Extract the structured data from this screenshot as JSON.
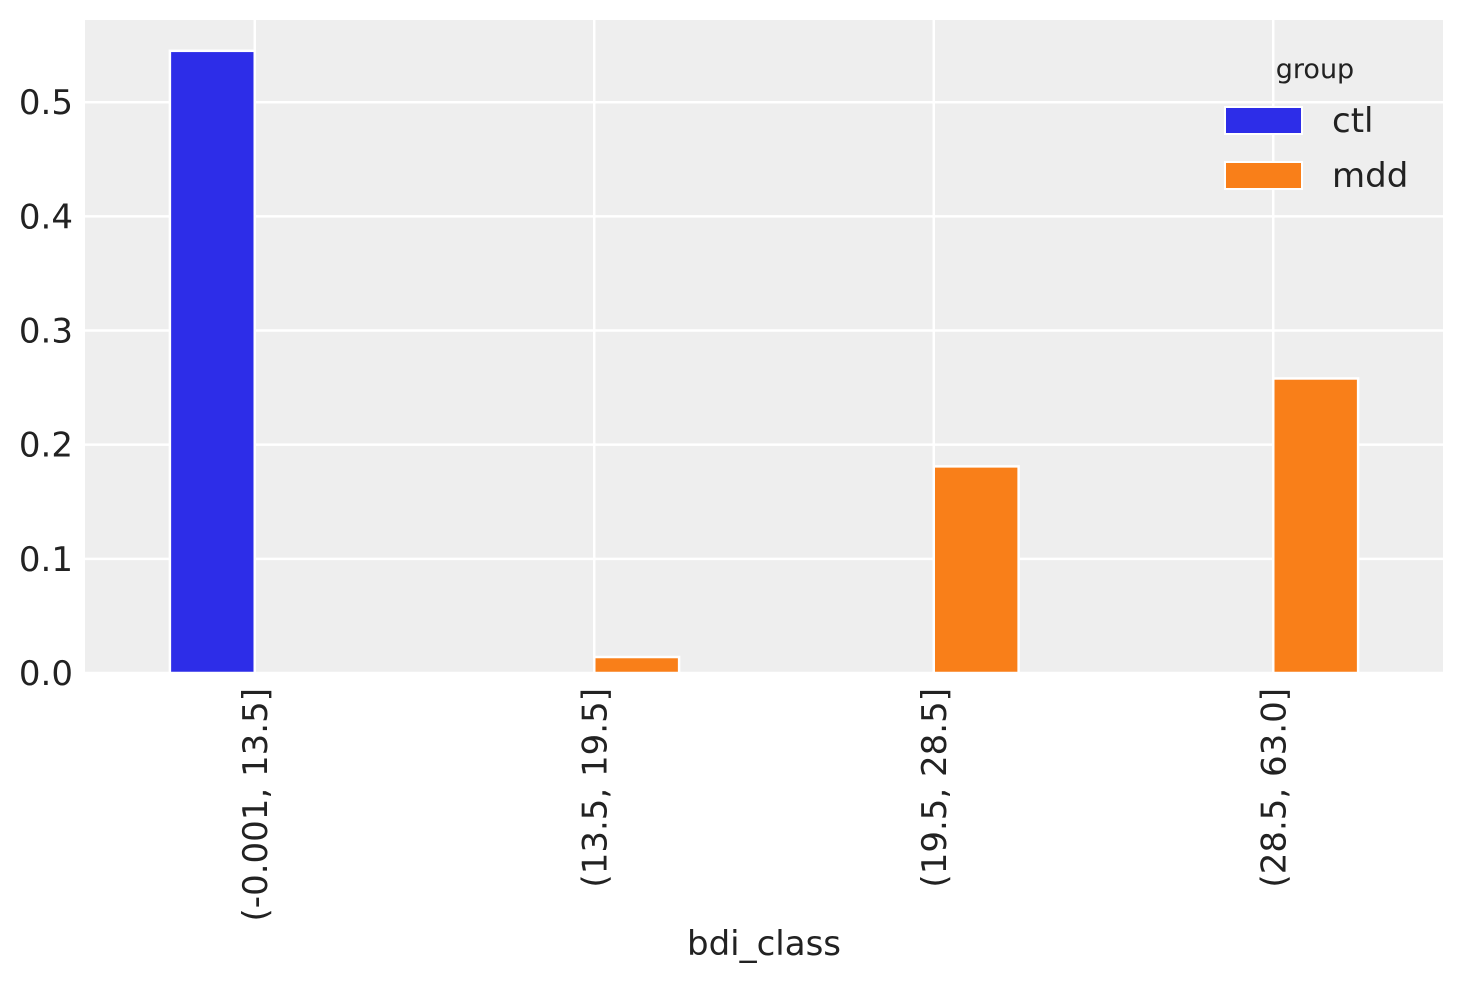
{
  "chart_data": {
    "type": "bar",
    "title": "",
    "xlabel": "bdi_class",
    "ylabel": "",
    "categories": [
      "(-0.001, 13.5]",
      "(13.5, 19.5]",
      "(19.5, 28.5]",
      "(28.5, 63.0]"
    ],
    "series": [
      {
        "name": "ctl",
        "color": "#2d2de8",
        "values": [
          0.545,
          0.0,
          0.0,
          0.0
        ]
      },
      {
        "name": "mdd",
        "color": "#f97f19",
        "values": [
          0.0,
          0.014,
          0.181,
          0.258
        ]
      }
    ],
    "ylim": [
      0,
      0.572
    ],
    "yticks": [
      0.0,
      0.1,
      0.2,
      0.3,
      0.4,
      0.5
    ],
    "grid": true,
    "legend": {
      "title": "group",
      "placement": "top-right"
    }
  }
}
